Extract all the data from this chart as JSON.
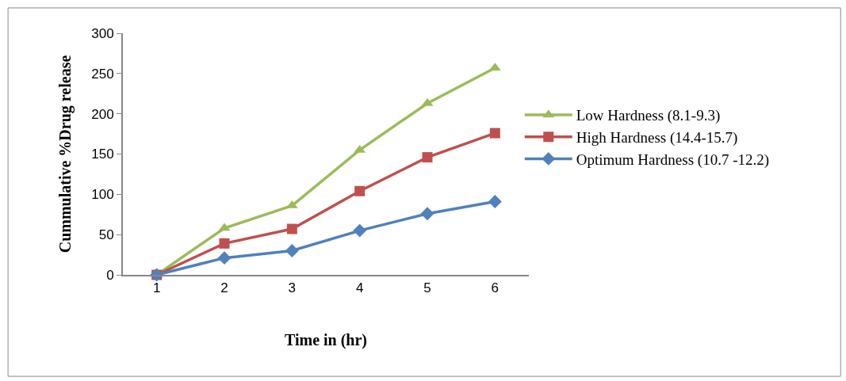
{
  "chart_data": {
    "type": "line",
    "xlabel": "Time in (hr)",
    "ylabel": "Cummulative %Drug release",
    "categories": [
      "1",
      "2",
      "3",
      "4",
      "5",
      "6"
    ],
    "series": [
      {
        "name": "Low Hardness (8.1-9.3)",
        "color": "#9bbb59",
        "marker": "triangle",
        "values": [
          0,
          58,
          86,
          155,
          213,
          257
        ]
      },
      {
        "name": "High Hardness (14.4-15.7)",
        "color": "#c0504d",
        "marker": "square",
        "values": [
          0,
          39,
          57,
          104,
          146,
          176
        ]
      },
      {
        "name": "Optimum Hardness (10.7 -12.2)",
        "color": "#4f81bd",
        "marker": "diamond",
        "values": [
          0,
          21,
          30,
          55,
          76,
          91
        ]
      }
    ],
    "ylim": [
      0,
      300
    ],
    "yticks": [
      0,
      50,
      100,
      150,
      200,
      250,
      300
    ],
    "legend": "right"
  }
}
